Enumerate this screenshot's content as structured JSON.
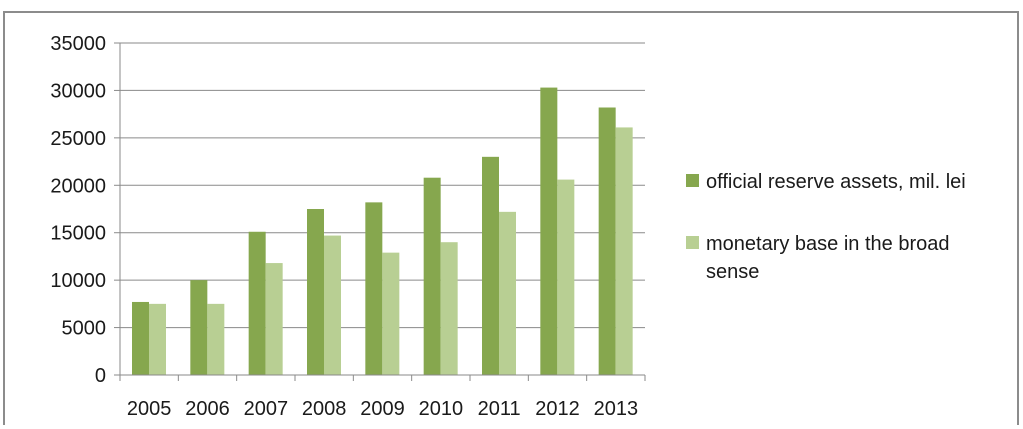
{
  "chart_data": {
    "type": "bar",
    "categories": [
      "2005",
      "2006",
      "2007",
      "2008",
      "2009",
      "2010",
      "2011",
      "2012",
      "2013"
    ],
    "series": [
      {
        "name": "official reserve assets, mil. lei",
        "color": "#86a74e",
        "values": [
          7700,
          10000,
          15100,
          17500,
          18200,
          20800,
          23000,
          30300,
          28200
        ]
      },
      {
        "name": "monetary base in the broad sense",
        "color": "#b8cf93",
        "values": [
          7500,
          7500,
          11800,
          14700,
          12900,
          14000,
          17200,
          20600,
          26100
        ]
      }
    ],
    "y_ticks": [
      "0",
      "5000",
      "10000",
      "15000",
      "20000",
      "25000",
      "30000",
      "35000"
    ],
    "ylim": [
      0,
      35000
    ],
    "grid": true,
    "legend": {
      "position": "right",
      "lines": [
        [
          "official reserve assets, mil. lei"
        ],
        [
          "monetary base in the broad",
          "sense"
        ]
      ]
    }
  }
}
